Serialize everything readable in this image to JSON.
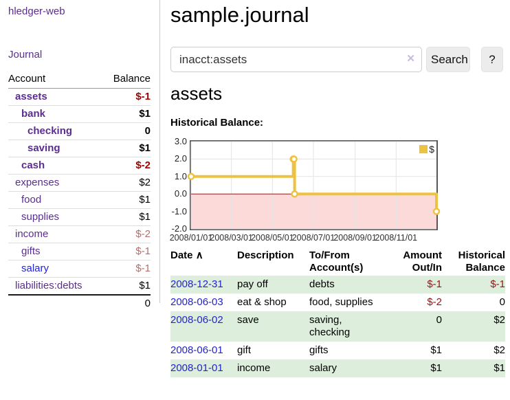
{
  "app": {
    "brand": "hledger-web",
    "nav": {
      "journal": "Journal"
    }
  },
  "sidebar": {
    "table": {
      "col_account": "Account",
      "col_balance": "Balance"
    },
    "accounts": [
      {
        "name": "assets",
        "balance": "$-1"
      },
      {
        "name": "bank",
        "balance": "$1"
      },
      {
        "name": "checking",
        "balance": "0"
      },
      {
        "name": "saving",
        "balance": "$1"
      },
      {
        "name": "cash",
        "balance": "$-2"
      },
      {
        "name": "expenses",
        "balance": "$2"
      },
      {
        "name": "food",
        "balance": "$1"
      },
      {
        "name": "supplies",
        "balance": "$1"
      },
      {
        "name": "income",
        "balance": "$-2"
      },
      {
        "name": "gifts",
        "balance": "$-1"
      },
      {
        "name": "salary",
        "balance": "$-1"
      },
      {
        "name": "liabilities:debts",
        "balance": "$1"
      }
    ],
    "total": "0"
  },
  "main": {
    "title": "sample.journal",
    "search": {
      "value": "inacct:assets",
      "clear_icon": "✕",
      "search_button": "Search",
      "help_button": "?"
    },
    "account_heading": "assets",
    "chart_heading": "Historical Balance:"
  },
  "chart_data": {
    "type": "line",
    "title": "Historical Balance:",
    "legend_label": "$",
    "legend_position": "top-right",
    "grid": true,
    "series": [
      {
        "name": "$",
        "style": "step-after",
        "points": [
          [
            "2008-01-01",
            1
          ],
          [
            "2008-06-01",
            2
          ],
          [
            "2008-06-02",
            2
          ],
          [
            "2008-06-03",
            0
          ],
          [
            "2008-12-31",
            -1
          ]
        ]
      }
    ],
    "xrange": [
      "2008-01-01",
      "2008-12-31"
    ],
    "ylim": [
      -2,
      3
    ],
    "x_ticks": [
      "2008/01/01",
      "2008/03/01",
      "2008/05/01",
      "2008/07/01",
      "2008/09/01",
      "2008/11/01"
    ],
    "y_ticks": [
      3.0,
      2.0,
      1.0,
      0.0,
      -1.0,
      -2.0
    ],
    "line_color": "#edc240",
    "zero_line_color": "#8b1a1a",
    "negative_region_color": "#fcdada",
    "grid_color": "#e3e3e3"
  },
  "register": {
    "sort_icon": "∧",
    "headers": {
      "date": "Date",
      "description": "Description",
      "tofrom_line1": "To/From",
      "tofrom_line2": "Account(s)",
      "amount_line1": "Amount",
      "amount_line2": "Out/In",
      "balance_line1": "Historical",
      "balance_line2": "Balance"
    },
    "rows": [
      {
        "date": "2008-12-31",
        "description": "pay off",
        "accounts": "debts",
        "amount": "$-1",
        "balance": "$-1"
      },
      {
        "date": "2008-06-03",
        "description": "eat & shop",
        "accounts": "food, supplies",
        "amount": "$-2",
        "balance": "0"
      },
      {
        "date": "2008-06-02",
        "description": "save",
        "accounts": "saving, checking",
        "amount": "0",
        "balance": "$2"
      },
      {
        "date": "2008-06-01",
        "description": "gift",
        "accounts": "gifts",
        "amount": "$1",
        "balance": "$2"
      },
      {
        "date": "2008-01-01",
        "description": "income",
        "accounts": "salary",
        "amount": "$1",
        "balance": "$1"
      }
    ]
  }
}
